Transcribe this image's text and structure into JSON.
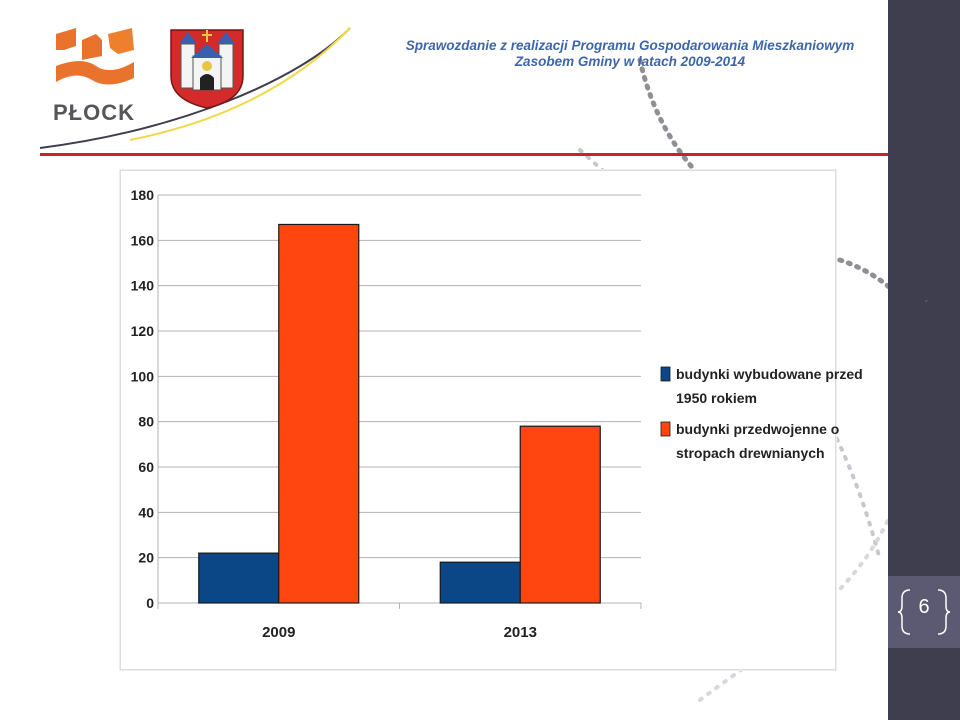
{
  "header": {
    "title_line1": "Sprawozdanie z realizacji Programu Gospodarowania Mieszkaniowym",
    "title_line2": "Zasobem Gminy w latach 2009-2014"
  },
  "logo": {
    "text": "PŁOCK"
  },
  "page_number": "6",
  "stray_mark": "´",
  "colors": {
    "accent_red": "#d21f26",
    "title_blue": "#3f66a6",
    "band_dark": "#3f3e4f",
    "series_blue": "#0b4687",
    "series_orange": "#ff4510"
  },
  "chart_data": {
    "type": "bar",
    "categories": [
      "2009",
      "2013"
    ],
    "series": [
      {
        "name": "budynki wybudowane przed 1950 rokiem",
        "values": [
          22,
          18
        ],
        "color": "#0b4687"
      },
      {
        "name": "budynki przedwojenne o stropach drewnianych",
        "values": [
          167,
          78
        ],
        "color": "#ff4510"
      }
    ],
    "legend_lines": [
      [
        "budynki wybudowane przed",
        "1950 rokiem"
      ],
      [
        "budynki przedwojenne o",
        "stropach drewnianych"
      ]
    ],
    "yticks": [
      0,
      20,
      40,
      60,
      80,
      100,
      120,
      140,
      160,
      180
    ],
    "ylim": [
      0,
      180
    ],
    "title": "",
    "xlabel": "",
    "ylabel": "",
    "grid": true,
    "legend_position": "right"
  }
}
